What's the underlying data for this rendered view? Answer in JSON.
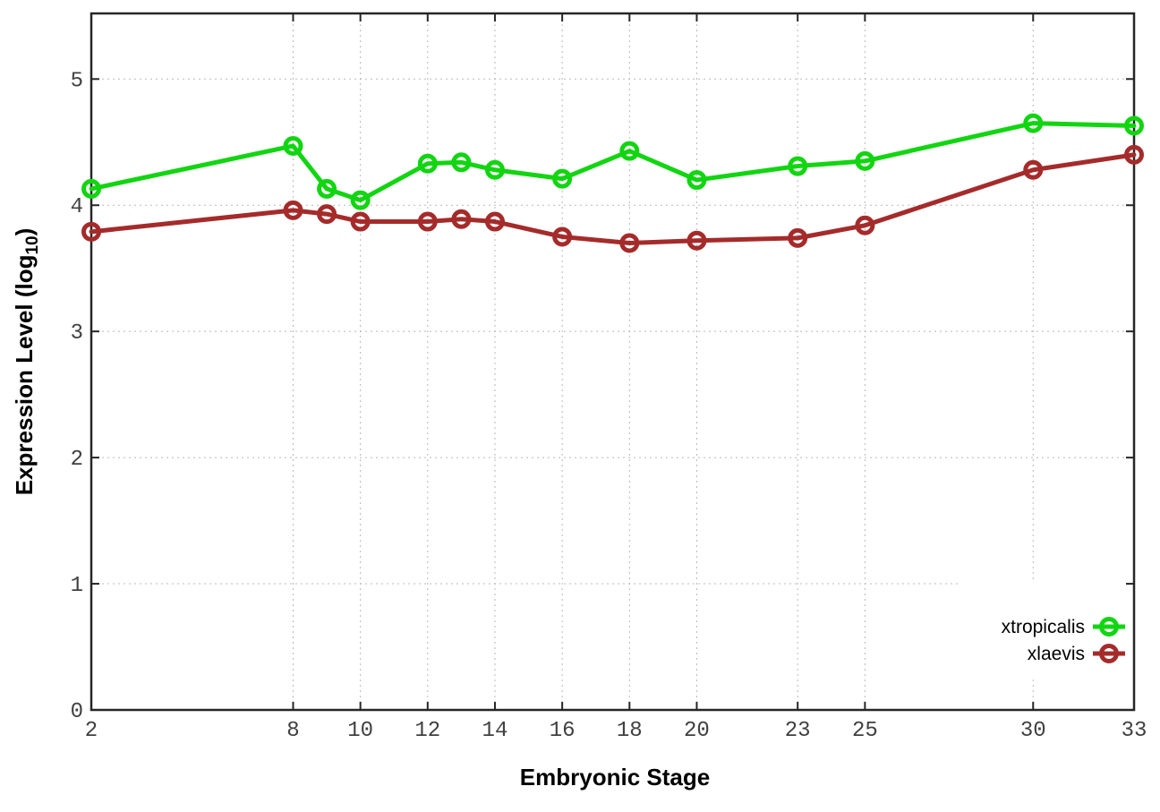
{
  "chart_data": {
    "type": "line",
    "title": "",
    "xlabel": "Embryonic Stage",
    "ylabel": {
      "prefix": "Expression Level (log",
      "sub": "10",
      "suffix": ")"
    },
    "ylabel_display": "Expression Level (log10)",
    "x": [
      2,
      8,
      9,
      10,
      12,
      13,
      14,
      16,
      18,
      20,
      23,
      25,
      30,
      33
    ],
    "series": [
      {
        "name": "xtropicalis",
        "color": "#12d512",
        "values": [
          4.13,
          4.47,
          4.13,
          4.04,
          4.33,
          4.34,
          4.28,
          4.21,
          4.43,
          4.2,
          4.31,
          4.35,
          4.65,
          4.63
        ]
      },
      {
        "name": "xlaevis",
        "color": "#a52b2b",
        "values": [
          3.79,
          3.96,
          3.93,
          3.87,
          3.87,
          3.89,
          3.87,
          3.75,
          3.7,
          3.72,
          3.74,
          3.84,
          4.28,
          4.4
        ]
      }
    ],
    "xticks": [
      2,
      8,
      10,
      12,
      14,
      16,
      18,
      20,
      23,
      25,
      30,
      33
    ],
    "yticks": [
      0,
      1,
      2,
      3,
      4,
      5
    ],
    "xlim": [
      2,
      33
    ],
    "ylim": [
      0,
      5.52
    ],
    "grid": true,
    "legend_position": "inside-right-lower",
    "marker": "open-circle",
    "line_width": 5
  },
  "style_colors": {
    "background": "#ffffff",
    "plot_border": "#262626",
    "gridline": "#b8b8b8",
    "tick_text": "#404040",
    "title_text": "#000000"
  }
}
